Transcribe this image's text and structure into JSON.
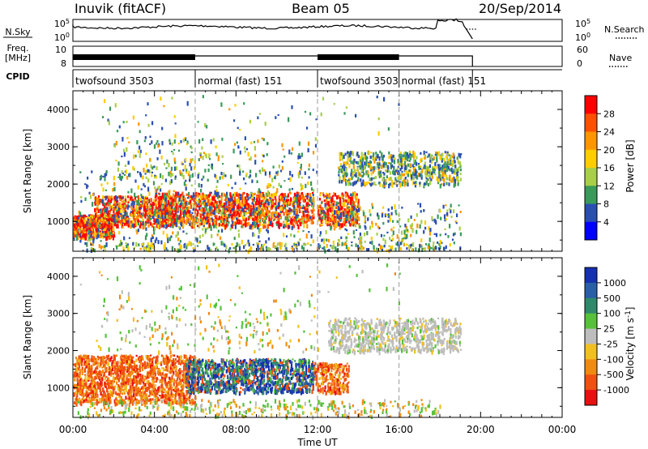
{
  "header": {
    "station": "Inuvik (fitACF)",
    "beam": "Beam 05",
    "date": "20/Sep/2014"
  },
  "labels": {
    "nsky": "N.Sky",
    "nsearch": "N.Search",
    "freq_line1": "Freq.",
    "freq_line2": "[MHz]",
    "nave": "Nave",
    "cpid": "CPID",
    "noise_tick_hi": "10^5",
    "noise_tick_lo": "10^0",
    "freq_tick_hi": "10",
    "freq_tick_lo": "8",
    "nave_tick_hi": "60",
    "nave_tick_lo": "0"
  },
  "cpid_segments": [
    {
      "label": "twofsound 3503",
      "start": 0,
      "end": 6
    },
    {
      "label": "normal (fast) 151",
      "start": 6,
      "end": 12
    },
    {
      "label": "twofsound 3503",
      "start": 12,
      "end": 16
    },
    {
      "label": "normal (fast) 151",
      "start": 16,
      "end": 19.6
    }
  ],
  "chart_data": [
    {
      "type": "heatmap",
      "name": "power",
      "ylabel": "Slant Range [km]",
      "xlabel": "",
      "colorbar_label": "Power [dB]",
      "xlim": [
        0,
        24
      ],
      "ylim": [
        200,
        4500
      ],
      "x_ticks": [
        "00:00",
        "04:00",
        "08:00",
        "12:00",
        "16:00",
        "20:00",
        "00:00"
      ],
      "y_ticks": [
        1000,
        2000,
        3000,
        4000
      ],
      "colorbar_ticks": [
        "28",
        "24",
        "20",
        "16",
        "12",
        "8",
        "4"
      ],
      "colorbar_colors": [
        "#ff0000",
        "#ff5000",
        "#ff9600",
        "#ffcd00",
        "#a8cf48",
        "#3a9a5a",
        "#2a4fb0",
        "#0000ff"
      ]
    },
    {
      "type": "heatmap",
      "name": "velocity",
      "ylabel": "Slant Range [km]",
      "xlabel": "Time UT",
      "colorbar_label": "Velocity [m s^-1]",
      "xlim": [
        0,
        24
      ],
      "ylim": [
        200,
        4500
      ],
      "x_ticks": [
        "00:00",
        "04:00",
        "08:00",
        "12:00",
        "16:00",
        "20:00",
        "00:00"
      ],
      "y_ticks": [
        1000,
        2000,
        3000,
        4000
      ],
      "colorbar_ticks": [
        "1000",
        "500",
        "100",
        "25",
        "-25",
        "-100",
        "-500",
        "-1000"
      ],
      "colorbar_colors": [
        "#1530b0",
        "#2a5ea8",
        "#2e8a6a",
        "#56c23a",
        "#bdbdbd",
        "#f0c020",
        "#f08a10",
        "#f05010",
        "#e81010"
      ]
    }
  ]
}
